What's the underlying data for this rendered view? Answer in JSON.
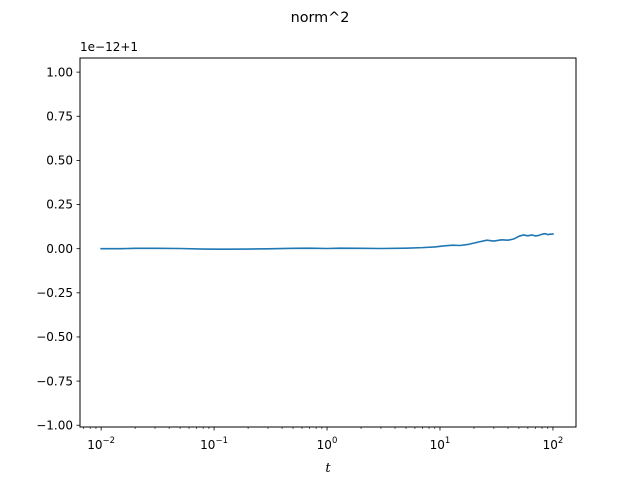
{
  "chart_data": {
    "type": "line",
    "title": "norm^2",
    "xlabel": "t",
    "ylabel": "",
    "offset_text": "1e−12+1",
    "xscale": "log",
    "xlim": [
      0.0065,
      160
    ],
    "ylim": [
      -1.01,
      1.08
    ],
    "x_ticks": [
      {
        "value": 0.01,
        "base": "10",
        "exp": "−2"
      },
      {
        "value": 0.1,
        "base": "10",
        "exp": "−1"
      },
      {
        "value": 1,
        "base": "10",
        "exp": "0"
      },
      {
        "value": 10,
        "base": "10",
        "exp": "1"
      },
      {
        "value": 100,
        "base": "10",
        "exp": "2"
      }
    ],
    "y_ticks": [
      {
        "value": 1.0,
        "label": "1.00"
      },
      {
        "value": 0.75,
        "label": "0.75"
      },
      {
        "value": 0.5,
        "label": "0.50"
      },
      {
        "value": 0.25,
        "label": "0.25"
      },
      {
        "value": 0.0,
        "label": "0.00"
      },
      {
        "value": -0.25,
        "label": "−0.25"
      },
      {
        "value": -0.5,
        "label": "−0.50"
      },
      {
        "value": -0.75,
        "label": "−0.75"
      },
      {
        "value": -1.0,
        "label": "−1.00"
      }
    ],
    "grid": false,
    "series": [
      {
        "color": "#1f77b4",
        "x": [
          0.01,
          0.015,
          0.02,
          0.03,
          0.05,
          0.08,
          0.12,
          0.2,
          0.3,
          0.5,
          0.7,
          1.0,
          1.3,
          2.0,
          3.0,
          5.0,
          7.0,
          9.0,
          11,
          13,
          15,
          18,
          22,
          26,
          30,
          35,
          40,
          45,
          50,
          55,
          60,
          65,
          70,
          75,
          80,
          85,
          90,
          95,
          100
        ],
        "y": [
          0.0,
          0.0,
          0.002,
          0.002,
          0.001,
          -0.002,
          -0.003,
          -0.002,
          -0.001,
          0.002,
          0.003,
          0.001,
          0.003,
          0.002,
          0.001,
          0.003,
          0.006,
          0.01,
          0.016,
          0.02,
          0.018,
          0.025,
          0.038,
          0.048,
          0.043,
          0.05,
          0.048,
          0.055,
          0.07,
          0.078,
          0.073,
          0.078,
          0.072,
          0.075,
          0.082,
          0.085,
          0.08,
          0.082,
          0.083
        ]
      }
    ]
  }
}
